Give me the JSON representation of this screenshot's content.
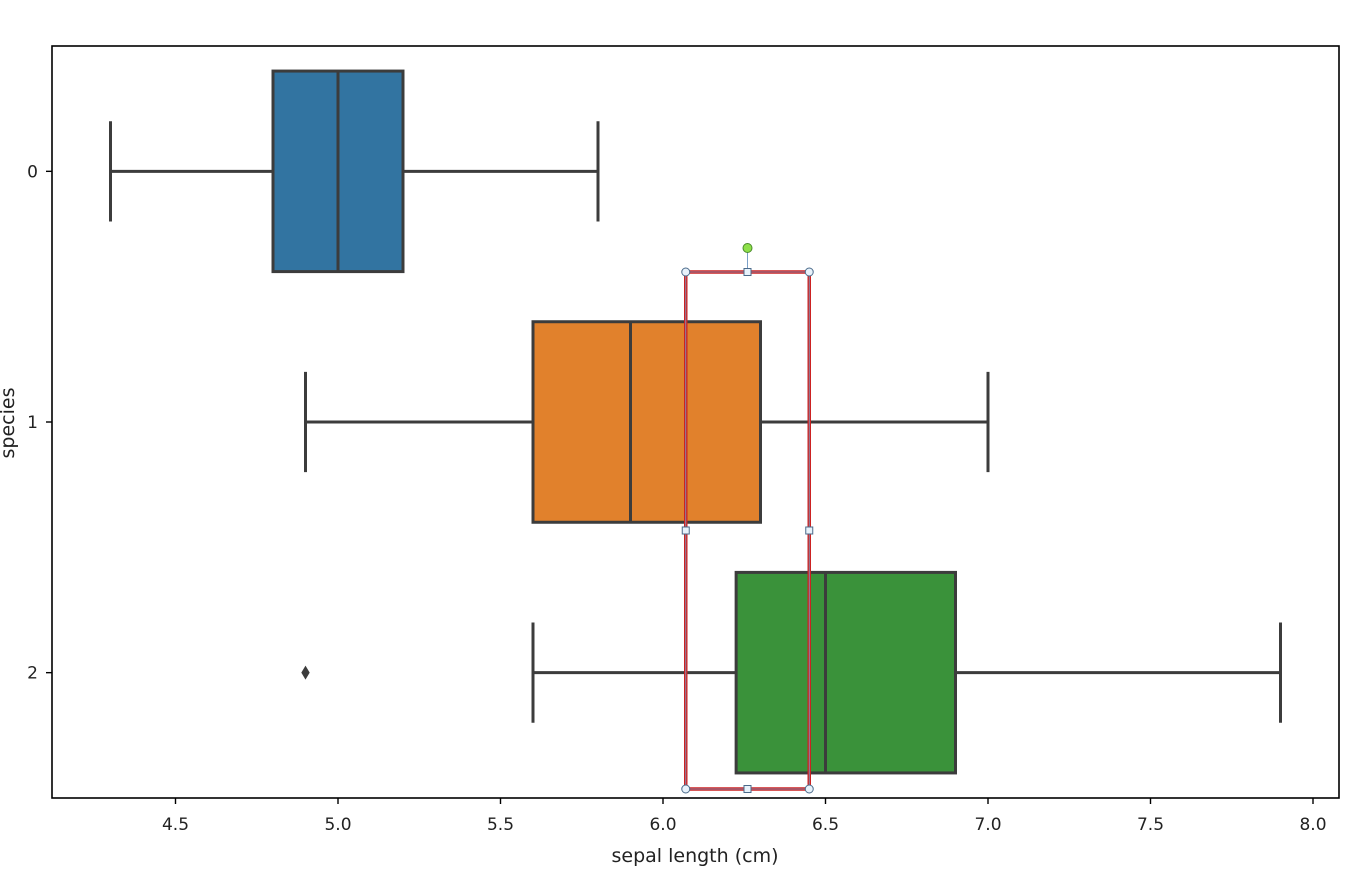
{
  "chart_data": {
    "type": "boxplot",
    "orientation": "horizontal",
    "xlabel": "sepal length (cm)",
    "ylabel": "species",
    "xlim": [
      4.12,
      8.08
    ],
    "xticks": [
      "4.5",
      "5.0",
      "5.5",
      "6.0",
      "6.5",
      "7.0",
      "7.5",
      "8.0"
    ],
    "grid": false,
    "categories": [
      "0",
      "1",
      "2"
    ],
    "boxes": [
      {
        "category": "0",
        "whisker_low": 4.3,
        "q1": 4.8,
        "median": 5.0,
        "q3": 5.2,
        "whisker_high": 5.8,
        "outliers": [],
        "color": "#3274a1"
      },
      {
        "category": "1",
        "whisker_low": 4.9,
        "q1": 5.6,
        "median": 5.9,
        "q3": 6.3,
        "whisker_high": 7.0,
        "outliers": [],
        "color": "#e1812c"
      },
      {
        "category": "2",
        "whisker_low": 5.6,
        "q1": 6.225,
        "median": 6.5,
        "q3": 6.9,
        "whisker_high": 7.9,
        "outliers": [
          4.9
        ],
        "color": "#3a923a"
      }
    ],
    "selection_overlay": {
      "shape": "rectangle",
      "stroke": "#cc2222",
      "x_range": [
        6.07,
        6.45
      ],
      "selected": true
    }
  }
}
